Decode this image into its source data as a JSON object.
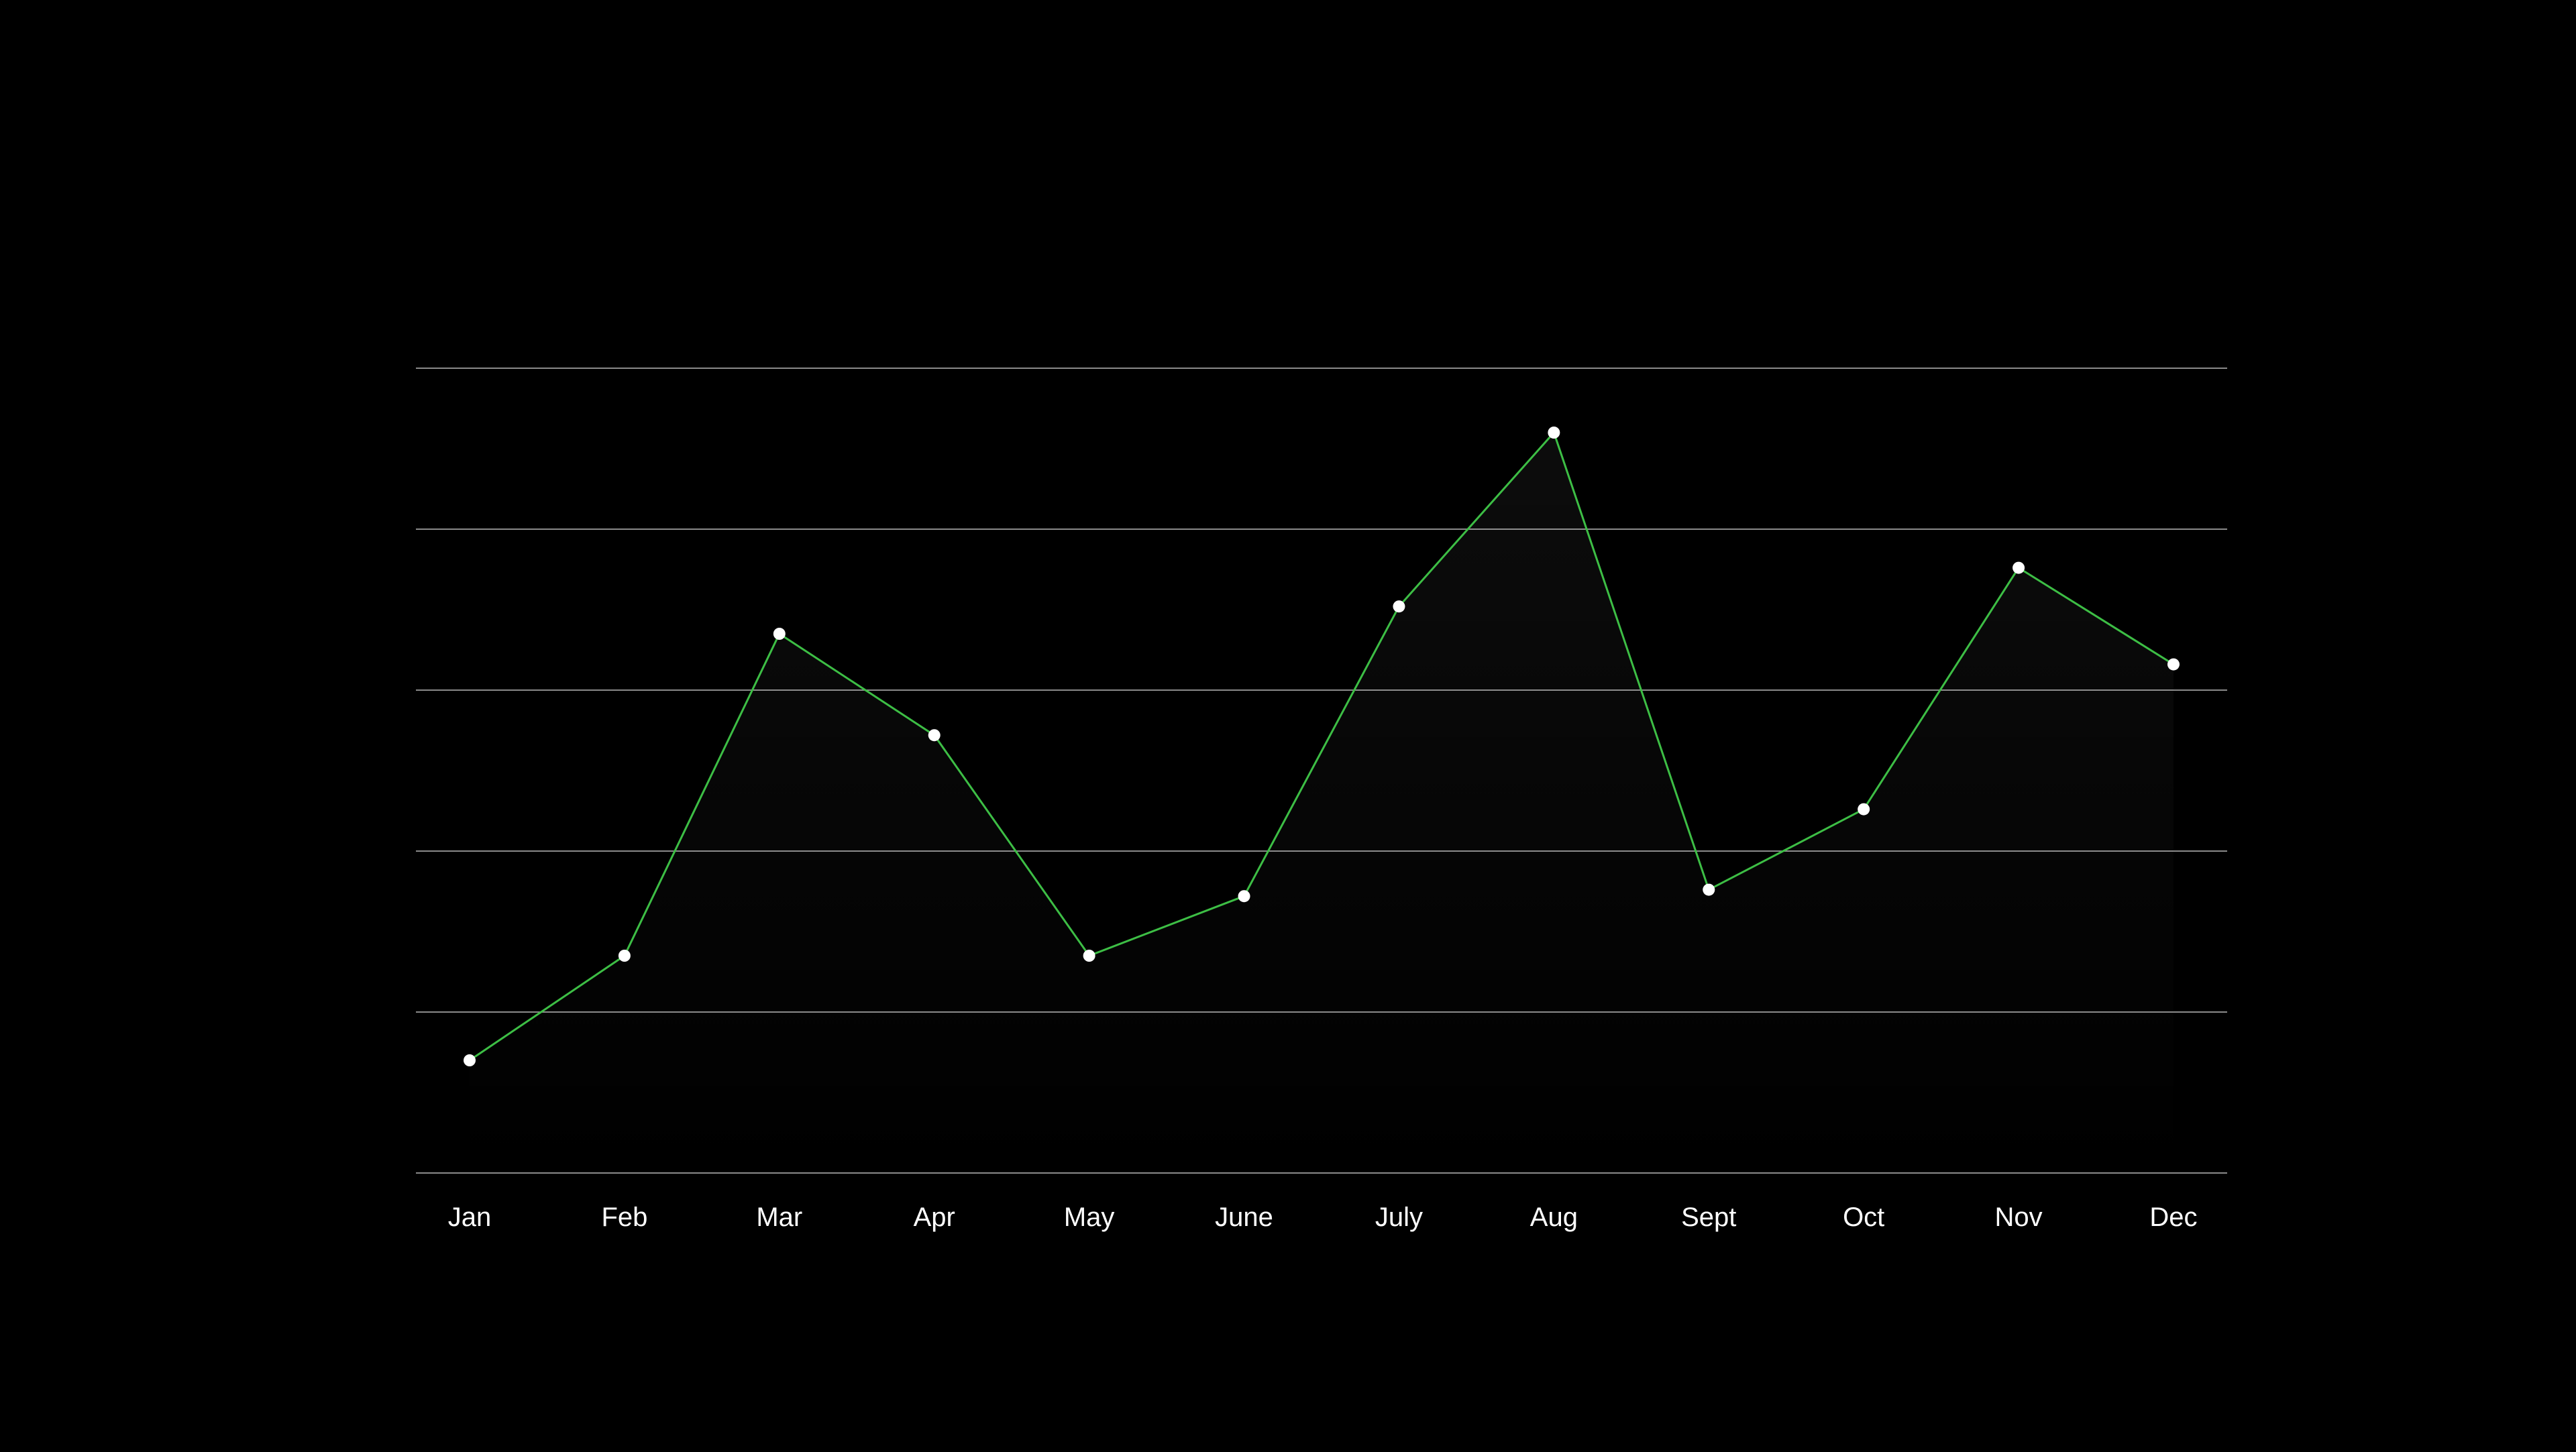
{
  "chart_data": {
    "type": "line",
    "title": "",
    "xlabel": "",
    "ylabel": "",
    "categories": [
      "Jan",
      "Feb",
      "Mar",
      "Apr",
      "May",
      "June",
      "July",
      "Aug",
      "Sept",
      "Oct",
      "Nov",
      "Dec"
    ],
    "series": [
      {
        "values": [
          0.7,
          1.35,
          3.35,
          2.72,
          1.35,
          1.72,
          3.52,
          4.6,
          1.76,
          2.26,
          3.76,
          3.16
        ]
      }
    ],
    "ylim": [
      0,
      5
    ],
    "y_gridlines": [
      0,
      1,
      2,
      3,
      4,
      5
    ],
    "y_tick_labels_shown": false,
    "grid": true,
    "legend": "none",
    "markers": true,
    "colors": {
      "background": "#000000",
      "line": "#3DBE45",
      "marker": "#FFFFFF",
      "grid": "#8A8A8A",
      "text": "#FFFFFF"
    }
  }
}
